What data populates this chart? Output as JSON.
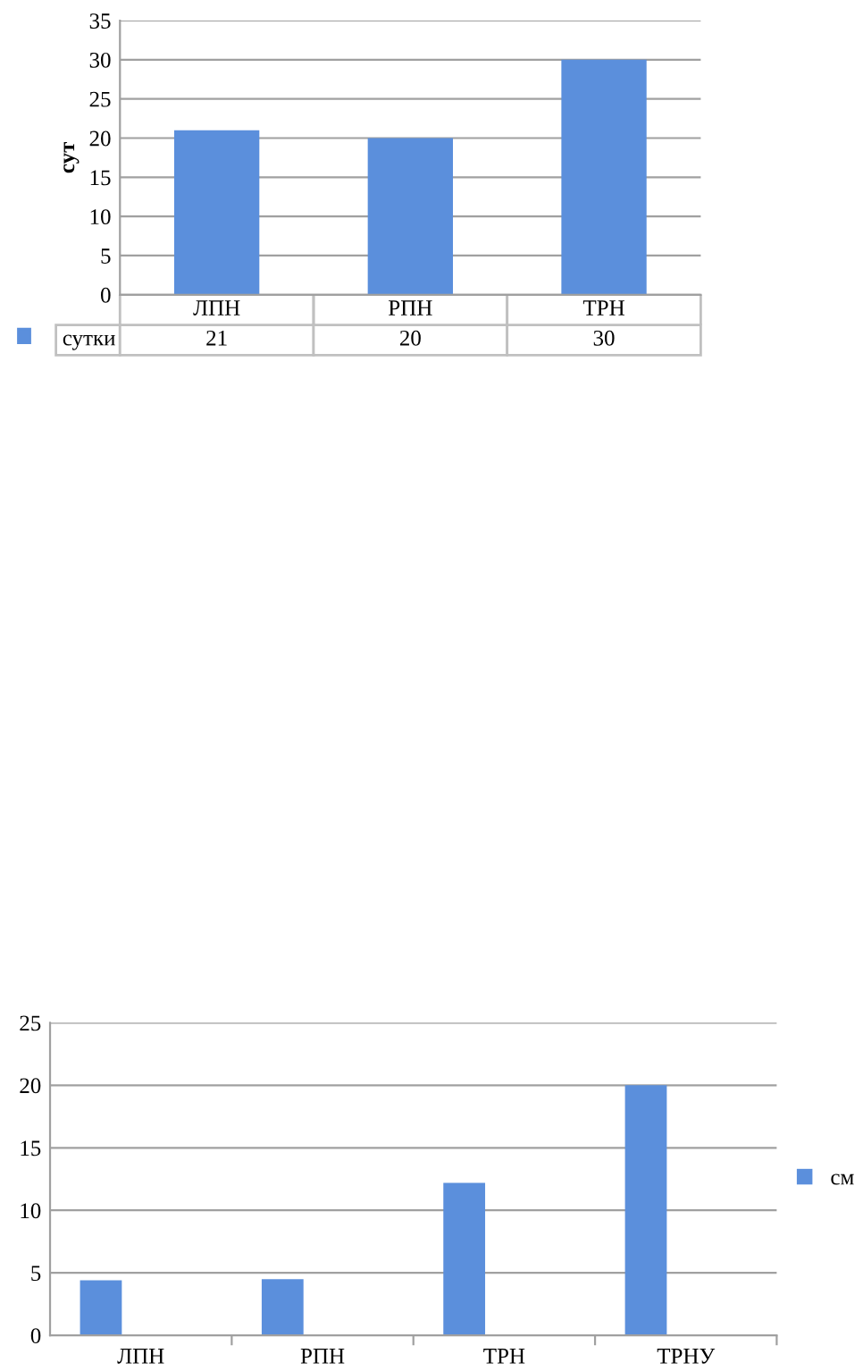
{
  "chart_data": [
    {
      "type": "bar",
      "ylabel": "сут",
      "categories": [
        "ЛПН",
        "РПН",
        "ТРН"
      ],
      "series": [
        {
          "name": "сутки",
          "color": "#5b8fdc",
          "values": [
            21,
            20,
            30
          ]
        }
      ],
      "ylim": [
        0,
        35
      ],
      "yticks": [
        0,
        5,
        10,
        15,
        20,
        25,
        30,
        35
      ],
      "grid": "y",
      "data_labels": true
    },
    {
      "type": "bar",
      "categories": [
        "ЛПН",
        "РПН",
        "ТРН",
        "ТРНУ"
      ],
      "series": [
        {
          "name": "см",
          "color": "#5b8fdc",
          "values": [
            4.4,
            4.5,
            12.2,
            20
          ]
        }
      ],
      "ylim": [
        0,
        25
      ],
      "yticks": [
        0,
        5,
        10,
        15,
        20,
        25
      ],
      "grid": "y",
      "legend": "right"
    }
  ]
}
